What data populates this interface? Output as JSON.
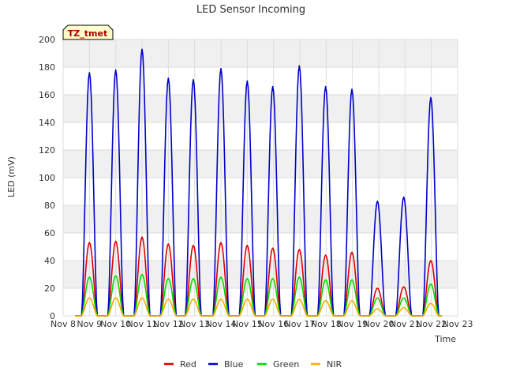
{
  "chart_data": {
    "type": "line",
    "title": "LED Sensor Incoming",
    "xlabel": "Time",
    "ylabel": "LED (mV)",
    "ylim": [
      0,
      200
    ],
    "yticks": [
      0,
      20,
      40,
      60,
      80,
      100,
      120,
      140,
      160,
      180,
      200
    ],
    "xlim": [
      8,
      23
    ],
    "xticks": [
      {
        "value": 8,
        "label": "Nov 8"
      },
      {
        "value": 9,
        "label": "Nov 9"
      },
      {
        "value": 10,
        "label": "Nov 10"
      },
      {
        "value": 11,
        "label": "Nov 11"
      },
      {
        "value": 12,
        "label": "Nov 12"
      },
      {
        "value": 13,
        "label": "Nov 13"
      },
      {
        "value": 14,
        "label": "Nov 14"
      },
      {
        "value": 15,
        "label": "Nov 15"
      },
      {
        "value": 16,
        "label": "Nov 16"
      },
      {
        "value": 17,
        "label": "Nov 17"
      },
      {
        "value": 18,
        "label": "Nov 18"
      },
      {
        "value": 19,
        "label": "Nov 19"
      },
      {
        "value": 20,
        "label": "Nov 20"
      },
      {
        "value": 21,
        "label": "Nov 21"
      },
      {
        "value": 22,
        "label": "Nov 22"
      },
      {
        "value": 23,
        "label": "Nov 23"
      }
    ],
    "grid": true,
    "badge": "TZ_tmet",
    "daily_peak_centers": [
      9.0,
      10.0,
      11.0,
      12.0,
      12.95,
      14.0,
      15.0,
      15.97,
      16.98,
      17.98,
      18.98,
      19.95,
      20.95,
      21.98
    ],
    "series": [
      {
        "name": "Red",
        "color": "#dd0000",
        "peaks": [
          53,
          54,
          57,
          52,
          51,
          53,
          51,
          49,
          48,
          44,
          46,
          20,
          21,
          40
        ]
      },
      {
        "name": "Blue",
        "color": "#0000cc",
        "peaks": [
          176,
          178,
          193,
          172,
          171,
          179,
          170,
          166,
          181,
          166,
          164,
          83,
          86,
          158
        ]
      },
      {
        "name": "Green",
        "color": "#00dd00",
        "peaks": [
          28,
          29,
          30,
          27,
          27,
          28,
          27,
          27,
          28,
          26,
          26,
          13,
          13,
          23
        ]
      },
      {
        "name": "NIR",
        "color": "#ffaa00",
        "peaks": [
          13,
          13,
          13,
          12,
          12,
          12,
          12,
          12,
          12,
          11,
          11,
          5,
          6,
          9
        ]
      }
    ]
  }
}
